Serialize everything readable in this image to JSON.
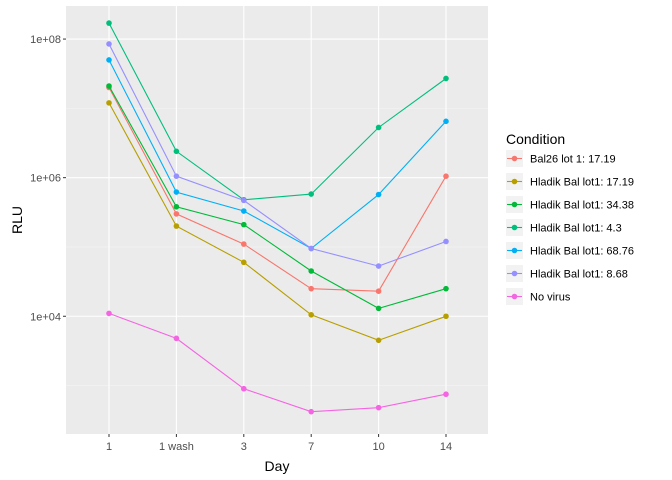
{
  "chart_data": {
    "type": "line",
    "title": "",
    "xlabel": "Day",
    "ylabel": "RLU",
    "scale_y": "log10",
    "categories": [
      "1",
      "1 wash",
      "3",
      "7",
      "10",
      "14"
    ],
    "ylim": [
      200,
      300000000
    ],
    "y_ticks": [
      {
        "value": 10000,
        "label": "1e+04"
      },
      {
        "value": 1000000,
        "label": "1e+06"
      },
      {
        "value": 100000000,
        "label": "1e+08"
      }
    ],
    "grid": true,
    "legend": {
      "title": "Condition",
      "position": "right"
    },
    "series": [
      {
        "name": "Bal26 lot 1: 17.19",
        "color": "#F8766D",
        "values": [
          20000000,
          300000,
          110000,
          25000,
          23000,
          1050000
        ]
      },
      {
        "name": "Hladik Bal lot1: 17.19",
        "color": "#B79F00",
        "values": [
          12000000,
          200000,
          60000,
          10500,
          4500,
          10000
        ]
      },
      {
        "name": "Hladik Bal lot1: 34.38",
        "color": "#00BA38",
        "values": [
          21000000,
          380000,
          210000,
          45000,
          13000,
          25000
        ]
      },
      {
        "name": "Hladik Bal lot1: 4.3",
        "color": "#00BF7D",
        "values": [
          170000000,
          2400000,
          480000,
          580000,
          5300000,
          27000000
        ]
      },
      {
        "name": "Hladik Bal lot1: 68.76",
        "color": "#00B0F6",
        "values": [
          50000000,
          620000,
          330000,
          95000,
          570000,
          6500000
        ]
      },
      {
        "name": "Hladik Bal lot1: 8.68",
        "color": "#9590FF",
        "values": [
          85000000,
          1050000,
          470000,
          95000,
          53000,
          120000
        ]
      },
      {
        "name": "No virus",
        "color": "#F564E3",
        "values": [
          11000,
          4800,
          900,
          420,
          480,
          750
        ]
      }
    ]
  }
}
